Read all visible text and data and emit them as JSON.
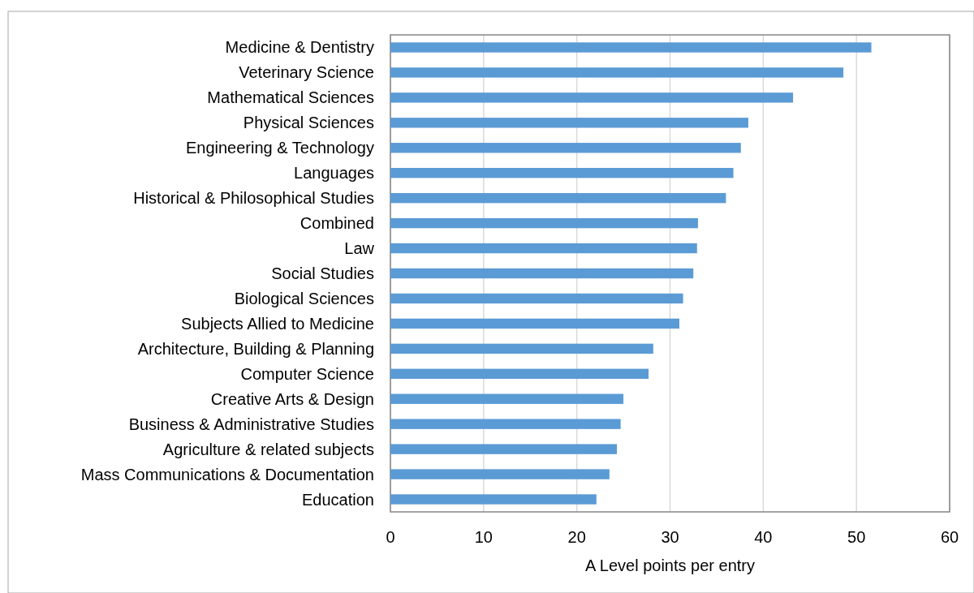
{
  "chart_data": {
    "type": "bar",
    "orientation": "horizontal",
    "xlabel": "A Level points per entry",
    "categories": [
      "Medicine & Dentistry",
      "Veterinary Science",
      "Mathematical Sciences",
      "Physical Sciences",
      "Engineering & Technology",
      "Languages",
      "Historical & Philosophical Studies",
      "Combined",
      "Law",
      "Social Studies",
      "Biological Sciences",
      "Subjects Allied to Medicine",
      "Architecture, Building & Planning",
      "Computer Science",
      "Creative Arts & Design",
      "Business & Administrative Studies",
      "Agriculture & related subjects",
      "Mass Communications & Documentation",
      "Education"
    ],
    "values": [
      51.6,
      48.6,
      43.2,
      38.4,
      37.6,
      36.8,
      36.0,
      33.0,
      32.9,
      32.5,
      31.4,
      31.0,
      28.2,
      27.7,
      25.0,
      24.7,
      24.3,
      23.5,
      22.1
    ],
    "color": "#5b9bd5",
    "xlim": [
      0,
      60
    ],
    "xticks": [
      0,
      10,
      20,
      30,
      40,
      50,
      60
    ],
    "grid": "x"
  }
}
